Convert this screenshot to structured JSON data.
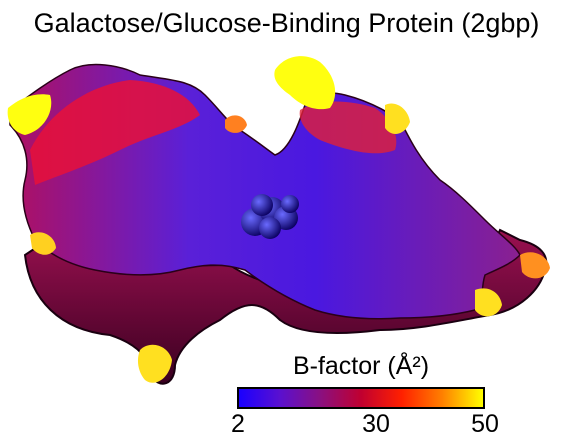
{
  "figure": {
    "title": "Galactose/Glucose-Binding Protein (2gbp)"
  },
  "colorbar": {
    "title": "B-factor (Å²)",
    "ticks": [
      "2",
      "30",
      "50"
    ],
    "colors": [
      "#1a00ff",
      "#5a10d0",
      "#8a1080",
      "#c00030",
      "#ff2000",
      "#ff8000",
      "#ffff00"
    ]
  }
}
